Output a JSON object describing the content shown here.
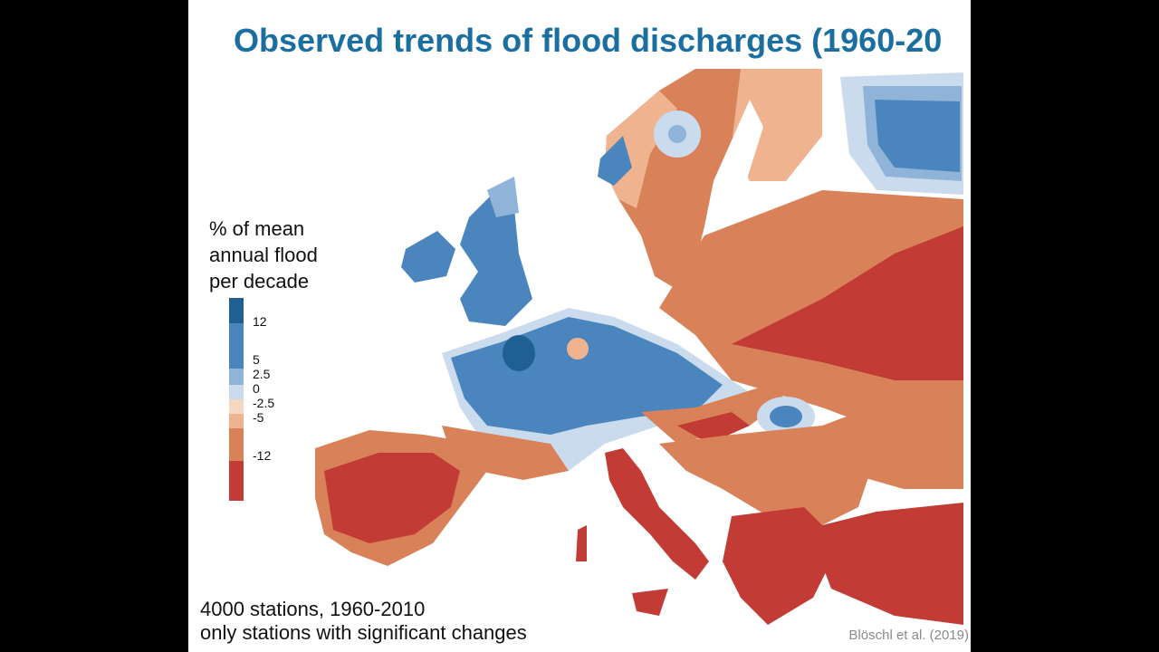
{
  "slide": {
    "title": "Observed trends of flood discharges (1960-20",
    "footer_line1": "4000 stations, 1960-2010",
    "footer_line2": "only stations with significant changes",
    "citation": "Blöschl et al. (2019)"
  },
  "legend": {
    "title_line1": "% of mean",
    "title_line2": "annual flood",
    "title_line3": "per decade",
    "ticks": [
      "12",
      "5",
      "2.5",
      "0",
      "-2.5",
      "-5",
      "-12"
    ],
    "colors": {
      "strong_increase": "#1f5f91",
      "increase": "#4a86bd",
      "slight_increase": "#8fb4d8",
      "weak_increase": "#c9dbed",
      "weak_decrease": "#f6d8c2",
      "slight_decrease": "#efb48f",
      "decrease": "#d9825a",
      "strong_decrease": "#c23b35"
    }
  }
}
